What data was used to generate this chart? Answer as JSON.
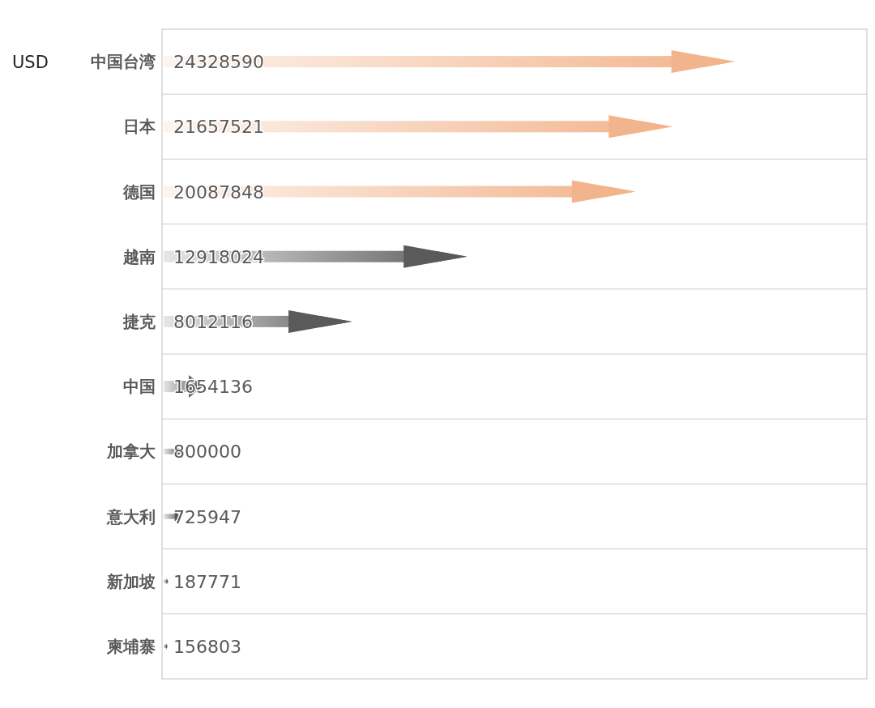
{
  "chart_data": {
    "type": "bar",
    "orientation": "horizontal",
    "categories": [
      "中国台湾",
      "日本",
      "德国",
      "越南",
      "捷克",
      "中国",
      "加拿大",
      "意大利",
      "新加坡",
      "柬埔寨"
    ],
    "values": [
      24328590,
      21657521,
      20087848,
      12918024,
      8012116,
      1654136,
      800000,
      725947,
      187771,
      156803
    ],
    "colors": [
      "#f2b48c",
      "#f2b48c",
      "#f2b48c",
      "#5a5a5a",
      "#5a5a5a",
      "#5a5a5a",
      "#5a5a5a",
      "#5a5a5a",
      "#5a5a5a",
      "#5a5a5a"
    ],
    "data_labels": true,
    "grid": true,
    "annotations": [
      "USD"
    ]
  }
}
